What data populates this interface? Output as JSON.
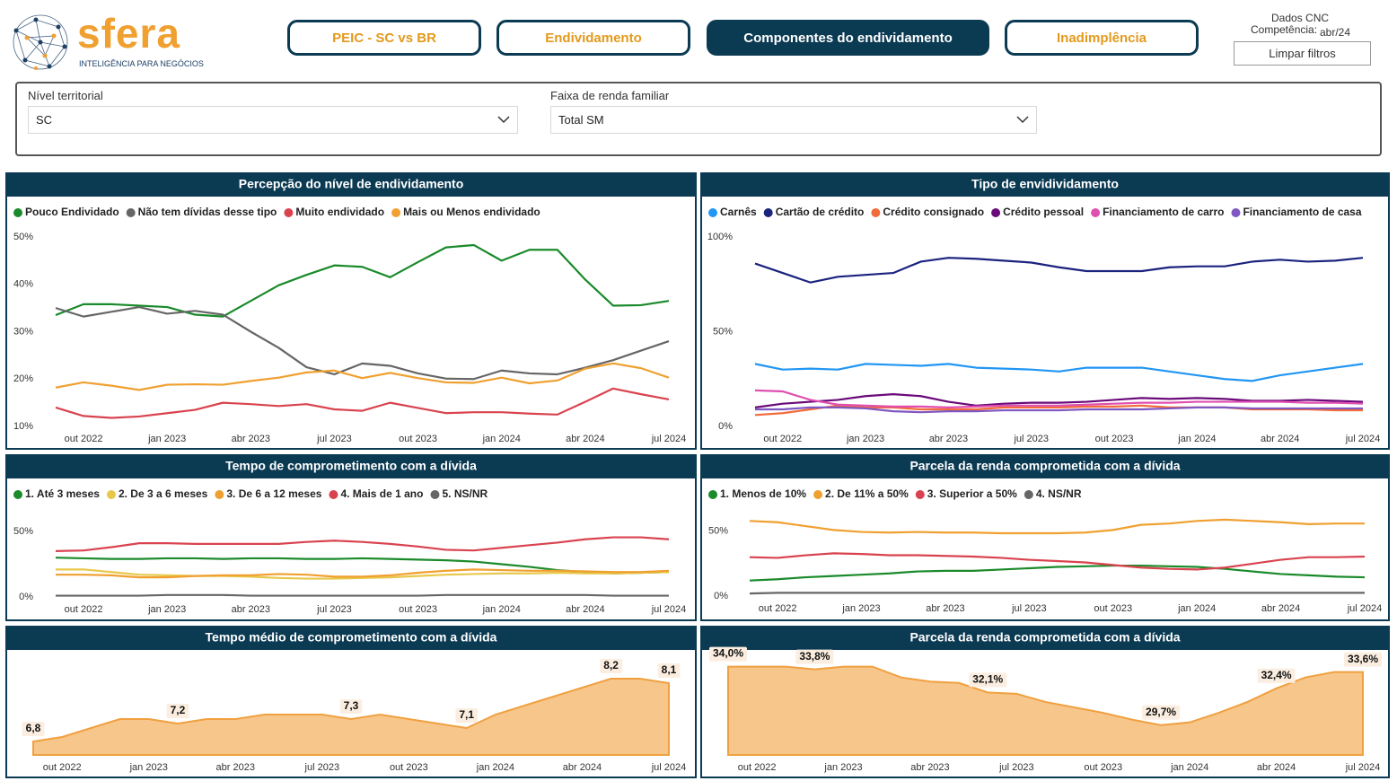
{
  "header": {
    "logo": {
      "name": "sfera",
      "tagline": "INTELIGÊNCIA PARA NEGÓCIOS"
    },
    "tabs": [
      "PEIC - SC vs BR",
      "Endividamento",
      "Componentes do endividamento",
      "Inadimplência"
    ],
    "source": "Dados CNC",
    "competence_label": "Competência:",
    "competence_value": "abr/24",
    "clear_button": "Limpar filtros"
  },
  "filters": [
    {
      "label": "Nível territorial",
      "value": "SC"
    },
    {
      "label": "Faixa de renda familiar",
      "value": "Total SM"
    }
  ],
  "chart_data": [
    {
      "type": "line",
      "title": "Percepção do nível de endividamento",
      "categories": [
        null,
        "out 2022",
        null,
        null,
        "jan 2023",
        null,
        null,
        "abr 2023",
        null,
        null,
        "jul 2023",
        null,
        null,
        "out 2023",
        null,
        null,
        "jan 2024",
        null,
        null,
        "abr 2024",
        null,
        null,
        "jul 2024"
      ],
      "ylim": [
        10,
        50
      ],
      "yticks": [
        {
          "value": 10,
          "label": "10%"
        },
        {
          "value": 20,
          "label": "20%"
        },
        {
          "value": 30,
          "label": "30%"
        },
        {
          "value": 40,
          "label": "40%"
        },
        {
          "value": 50,
          "label": "50%"
        }
      ],
      "series": [
        {
          "name": "Pouco Endividado",
          "color": "#1a8a2a",
          "values": [
            33.5,
            35.8,
            35.8,
            35.5,
            35.2,
            33.6,
            33.2,
            36.5,
            39.8,
            42,
            44,
            43.7,
            41.5,
            44.7,
            47.8,
            48.3,
            45,
            47.3,
            47.3,
            41,
            35.5,
            35.6,
            36.5
          ]
        },
        {
          "name": "Não tem dívidas desse tipo",
          "color": "#666666",
          "values": [
            35,
            33.2,
            34.2,
            35.2,
            33.8,
            34.4,
            33.6,
            30,
            26.6,
            22.5,
            21,
            23.3,
            22.8,
            21.2,
            20.1,
            20,
            21.8,
            21.2,
            21,
            22.4,
            24,
            26,
            28
          ]
        },
        {
          "name": "Muito endividado",
          "color": "#d9434f",
          "values": [
            14,
            12.2,
            11.8,
            12.1,
            12.8,
            13.5,
            15,
            14.7,
            14.3,
            14.7,
            13.6,
            13.3,
            15,
            13.9,
            12.8,
            13,
            13,
            12.7,
            12.5,
            15.2,
            18,
            16.8,
            15.7
          ]
        },
        {
          "name": "Mais ou Menos endividado",
          "color": "#f0a030",
          "values": [
            18.2,
            19.3,
            18.6,
            17.7,
            18.8,
            18.9,
            18.8,
            19.6,
            20.3,
            21.4,
            21.8,
            20.2,
            21.3,
            20.2,
            19.3,
            19.2,
            20.3,
            19.1,
            19.7,
            22.2,
            23.3,
            22.3,
            20.3
          ]
        }
      ]
    },
    {
      "type": "line",
      "title": "Tipo de envidividamento",
      "categories": [
        null,
        "out 2022",
        null,
        null,
        "jan 2023",
        null,
        null,
        "abr 2023",
        null,
        null,
        "jul 2023",
        null,
        null,
        "out 2023",
        null,
        null,
        "jan 2024",
        null,
        null,
        "abr 2024",
        null,
        null,
        "jul 2024"
      ],
      "ylim": [
        0,
        100
      ],
      "yticks": [
        {
          "value": 0,
          "label": "0%"
        },
        {
          "value": 50,
          "label": "50%"
        },
        {
          "value": 100,
          "label": "100%"
        }
      ],
      "series": [
        {
          "name": "Carnês",
          "color": "#2196f3",
          "values": [
            33,
            30,
            30.5,
            30,
            33,
            32.5,
            32,
            33,
            31,
            30.5,
            30,
            29,
            31,
            31,
            31,
            29,
            27,
            25,
            24,
            27,
            29,
            31,
            33
          ]
        },
        {
          "name": "Cartão de crédito",
          "color": "#1a237e",
          "values": [
            86,
            81,
            76,
            79,
            80,
            81,
            87,
            89,
            88.5,
            87.5,
            86.5,
            84,
            82,
            82,
            82,
            84,
            84.5,
            84.5,
            87,
            88,
            87,
            87.5,
            89
          ]
        },
        {
          "name": "Crédito consignado",
          "color": "#f26b3a",
          "values": [
            6,
            7,
            9,
            11,
            10,
            10,
            9,
            9,
            9,
            10,
            10,
            10,
            10.5,
            10.5,
            11,
            10,
            10,
            10,
            9,
            9,
            9,
            8.5,
            8.5
          ]
        },
        {
          "name": "Crédito pessoal",
          "color": "#6a0a7a",
          "values": [
            10,
            12,
            13,
            14,
            16,
            17,
            16,
            13,
            11,
            12,
            12.5,
            12.5,
            13,
            14,
            15,
            14.5,
            15,
            14.5,
            13.5,
            13.5,
            14,
            13.5,
            13
          ]
        },
        {
          "name": "Financiamento de carro",
          "color": "#e04fb0",
          "values": [
            19,
            18.5,
            14,
            11.5,
            11,
            10.5,
            10.5,
            10,
            10.5,
            11,
            11,
            11,
            11.5,
            12,
            12.5,
            12.5,
            13,
            13,
            13,
            13,
            12.5,
            12.5,
            12
          ]
        },
        {
          "name": "Financiamento de casa",
          "color": "#7e57c2",
          "values": [
            9,
            9,
            10,
            10,
            9.5,
            8,
            7.5,
            8,
            8,
            8.5,
            8.5,
            8.5,
            9,
            9,
            9,
            9.5,
            10,
            10,
            9.5,
            9.5,
            9.5,
            9.5,
            9.5
          ]
        }
      ]
    },
    {
      "type": "line",
      "title": "Tempo de comprometimento com a dívida",
      "categories": [
        null,
        "out 2022",
        null,
        null,
        "jan 2023",
        null,
        null,
        "abr 2023",
        null,
        null,
        "jul 2023",
        null,
        null,
        "out 2023",
        null,
        null,
        "jan 2024",
        null,
        null,
        "abr 2024",
        null,
        null,
        "jul 2024"
      ],
      "ylim": [
        0,
        60
      ],
      "yticks": [
        {
          "value": 0,
          "label": "0%"
        },
        {
          "value": 50,
          "label": "50%"
        }
      ],
      "series": [
        {
          "name": "1. Até 3 meses",
          "color": "#1a8a2a",
          "values": [
            30,
            29.5,
            29,
            29,
            29.5,
            29.5,
            29,
            29.5,
            29.5,
            29,
            29,
            29.5,
            29,
            28.5,
            28,
            27,
            25,
            23,
            20.5,
            19,
            18,
            18.5,
            19
          ]
        },
        {
          "name": "2. De 3 a 6 meses",
          "color": "#e8c84a",
          "values": [
            21,
            21,
            19,
            17,
            16.5,
            16,
            16,
            15.5,
            14.5,
            14,
            14,
            14.5,
            15,
            16,
            17,
            17.5,
            18,
            18,
            18.5,
            18,
            18,
            18.5,
            19
          ]
        },
        {
          "name": "3. De 6 a 12 meses",
          "color": "#f0a030",
          "values": [
            17,
            17,
            16.5,
            15,
            15,
            16,
            16.5,
            16.5,
            17.5,
            17,
            15.5,
            15.5,
            16.5,
            18.5,
            20,
            21,
            20.5,
            20,
            20,
            19.5,
            19,
            19,
            20
          ]
        },
        {
          "name": "4. Mais de 1 ano",
          "color": "#d9434f",
          "values": [
            35,
            35.5,
            38,
            41,
            41,
            40.5,
            40.5,
            40.5,
            40.5,
            42,
            43,
            42,
            40.5,
            38.5,
            36,
            35.5,
            37.5,
            39.5,
            41.5,
            44,
            45.5,
            45.5,
            44
          ]
        },
        {
          "name": "5. NS/NR",
          "color": "#666666",
          "values": [
            1,
            1,
            1,
            1,
            1.5,
            1.5,
            1.5,
            1,
            1,
            1,
            1,
            1,
            1,
            1,
            1.5,
            1.5,
            1.5,
            1.5,
            1.5,
            1.5,
            1,
            1,
            1
          ]
        }
      ]
    },
    {
      "type": "line",
      "title": "Parcela da renda comprometida com a dívida",
      "categories": [
        null,
        "out 2022",
        null,
        null,
        "jan 2023",
        null,
        null,
        "abr 2023",
        null,
        null,
        "jul 2023",
        null,
        null,
        "out 2023",
        null,
        null,
        "jan 2024",
        null,
        null,
        "abr 2024",
        null,
        null,
        "jul 2024"
      ],
      "ylim": [
        0,
        60
      ],
      "yticks": [
        {
          "value": 0,
          "label": "0%"
        },
        {
          "value": 50,
          "label": "50%"
        }
      ],
      "series": [
        {
          "name": "1. Menos de 10%",
          "color": "#1a8a2a",
          "values": [
            12,
            13,
            14.5,
            15.5,
            16.5,
            17.5,
            19,
            19.5,
            19.5,
            20.5,
            21.5,
            22.5,
            23,
            23.5,
            23.5,
            23,
            22.5,
            21,
            19,
            17,
            16,
            15,
            14.5
          ]
        },
        {
          "name": "2. De 11% a 50%",
          "color": "#f0a030",
          "values": [
            58,
            57,
            54,
            51,
            49.5,
            49,
            49.5,
            49,
            49,
            48.5,
            48.5,
            48.5,
            49,
            51,
            55,
            56,
            58,
            59,
            58,
            57,
            55.5,
            56,
            56
          ]
        },
        {
          "name": "3. Superior a 50%",
          "color": "#d9434f",
          "values": [
            30,
            29.5,
            31.5,
            33,
            32.5,
            31.5,
            31.5,
            31,
            30.5,
            29.5,
            28,
            27,
            26,
            24,
            22,
            21,
            20.5,
            22,
            25,
            28,
            30,
            30,
            30.5
          ]
        },
        {
          "name": "4. NS/NR",
          "color": "#666666",
          "values": [
            2,
            2.5,
            2.5,
            2.5,
            2.5,
            2.5,
            2.5,
            2.5,
            2.5,
            2.5,
            2.5,
            2.5,
            2.5,
            2.5,
            2.5,
            2.5,
            2.5,
            2.5,
            2.5,
            2.5,
            2.5,
            2.5,
            2.5
          ]
        }
      ]
    },
    {
      "type": "area",
      "title": "Tempo médio de comprometimento com a dívida",
      "categories": [
        null,
        "out 2022",
        null,
        null,
        "jan 2023",
        null,
        null,
        "abr 2023",
        null,
        null,
        "jul 2023",
        null,
        null,
        "out 2023",
        null,
        null,
        "jan 2024",
        null,
        null,
        "abr 2024",
        null,
        null,
        "jul 2024"
      ],
      "ylim": [
        6.5,
        8.4
      ],
      "color": "#f7c68a",
      "values": [
        6.8,
        6.9,
        7.1,
        7.3,
        7.3,
        7.2,
        7.3,
        7.3,
        7.4,
        7.4,
        7.4,
        7.3,
        7.4,
        7.3,
        7.2,
        7.1,
        7.4,
        7.6,
        7.8,
        8.0,
        8.2,
        8.2,
        8.1
      ],
      "value_labels": [
        "6,8",
        null,
        null,
        null,
        null,
        "7,2",
        null,
        null,
        null,
        null,
        null,
        "7,3",
        null,
        null,
        null,
        "7,1",
        null,
        null,
        null,
        null,
        "8,2",
        null,
        "8,1"
      ]
    },
    {
      "type": "area",
      "title": "Parcela da renda comprometida com a dívida",
      "categories": [
        null,
        "out 2022",
        null,
        null,
        "jan 2023",
        null,
        null,
        "abr 2023",
        null,
        null,
        "jul 2023",
        null,
        null,
        "out 2023",
        null,
        null,
        "jan 2024",
        null,
        null,
        "abr 2024",
        null,
        null,
        "jul 2024"
      ],
      "ylim": [
        27.5,
        34.5
      ],
      "color": "#f7c68a",
      "values": [
        34.0,
        34.0,
        34.0,
        33.8,
        34.0,
        34.0,
        33.2,
        32.9,
        32.8,
        32.1,
        32.0,
        31.4,
        31.0,
        30.6,
        30.1,
        29.7,
        29.9,
        30.6,
        31.4,
        32.4,
        33.2,
        33.6,
        33.6
      ],
      "value_labels": [
        "34,0%",
        null,
        null,
        "33,8%",
        null,
        null,
        null,
        null,
        null,
        "32,1%",
        null,
        null,
        null,
        null,
        null,
        "29,7%",
        null,
        null,
        null,
        "32,4%",
        null,
        null,
        "33,6%"
      ]
    }
  ]
}
